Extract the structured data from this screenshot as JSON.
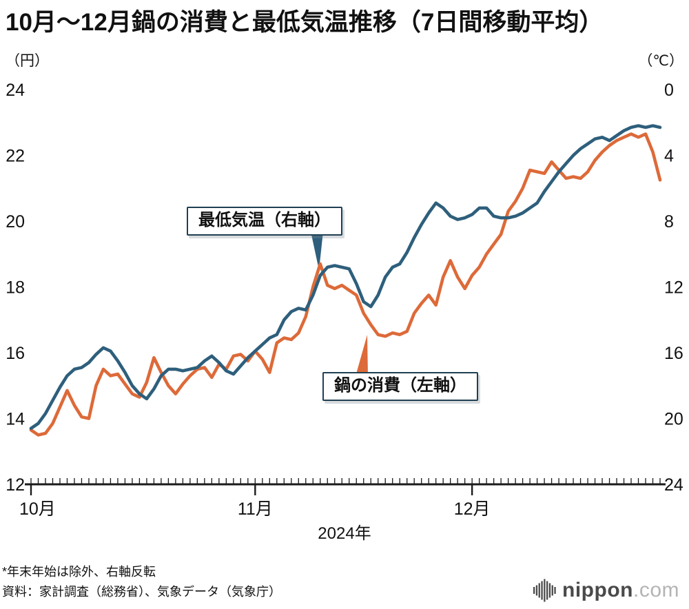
{
  "title": "10月〜12月鍋の消費と最低気温推移（7日間移動平均）",
  "left_axis": {
    "unit": "（円）",
    "ticks": [
      12,
      14,
      16,
      18,
      20,
      22,
      24
    ]
  },
  "right_axis": {
    "unit": "（℃）",
    "ticks": [
      0,
      4,
      8,
      12,
      16,
      20,
      24
    ],
    "reversed": true
  },
  "x_axis": {
    "months": [
      {
        "label": "10月",
        "day": 0
      },
      {
        "label": "11月",
        "day": 31
      },
      {
        "label": "12月",
        "day": 61
      }
    ],
    "year_label": "2024年"
  },
  "annotations": [
    {
      "text": "最低気温（右軸）",
      "series": "min_temperature"
    },
    {
      "text": "鍋の消費（左軸）",
      "series": "nabe_consumption"
    }
  ],
  "footnotes": [
    "*年末年始は除外、右軸反転",
    "資料：家計調査（総務省）、気象データ（気象庁）"
  ],
  "logo": {
    "name": "nippon",
    "tld": ".com"
  },
  "colors": {
    "temperature_line": "#2e5f7c",
    "nabe_line": "#dd6a39",
    "axis": "#1a1a1a"
  },
  "chart_data": {
    "type": "line",
    "title": "10月〜12月鍋の消費と最低気温推移（7日間移動平均）",
    "xlabel": "2024年（10月〜12月、年末年始は除外）",
    "left_ylabel": "鍋の消費（円）",
    "right_ylabel": "最低気温（℃、右軸反転）",
    "left_ylim": [
      12,
      24
    ],
    "right_ylim": [
      24,
      0
    ],
    "grid": false,
    "legend_position": "inline-annotations",
    "series": [
      {
        "name": "最低気温（右軸）",
        "axis": "right",
        "unit": "℃",
        "color": "#2e5f7c",
        "values": [
          20.6,
          20.3,
          19.7,
          18.9,
          18.1,
          17.4,
          17.0,
          16.9,
          16.6,
          16.1,
          15.7,
          15.9,
          16.5,
          17.2,
          18.0,
          18.5,
          18.8,
          18.2,
          17.4,
          17.0,
          17.0,
          17.1,
          17.0,
          16.9,
          16.5,
          16.2,
          16.6,
          17.1,
          17.3,
          16.8,
          16.3,
          15.9,
          15.5,
          15.1,
          14.9,
          14.0,
          13.5,
          13.3,
          13.4,
          12.5,
          11.3,
          10.8,
          10.7,
          10.8,
          10.9,
          11.8,
          12.9,
          13.2,
          12.5,
          11.4,
          10.8,
          10.6,
          9.9,
          9.0,
          8.2,
          7.5,
          6.9,
          7.2,
          7.7,
          7.9,
          7.8,
          7.6,
          7.2,
          7.2,
          7.7,
          7.8,
          7.8,
          7.7,
          7.5,
          7.2,
          6.9,
          6.2,
          5.6,
          5.0,
          4.5,
          4.0,
          3.6,
          3.3,
          3.0,
          2.9,
          3.1,
          2.8,
          2.5,
          2.3,
          2.2,
          2.3,
          2.2,
          2.3
        ]
      },
      {
        "name": "鍋の消費（左軸）",
        "axis": "left",
        "unit": "円",
        "color": "#dd6a39",
        "values": [
          13.65,
          13.5,
          13.55,
          13.85,
          14.35,
          14.85,
          14.4,
          14.05,
          14.0,
          15.0,
          15.5,
          15.3,
          15.35,
          15.05,
          14.75,
          14.65,
          15.1,
          15.85,
          15.4,
          15.0,
          14.75,
          15.05,
          15.3,
          15.5,
          15.55,
          15.25,
          15.65,
          15.5,
          15.9,
          15.95,
          15.75,
          16.05,
          15.8,
          15.4,
          16.3,
          16.45,
          16.4,
          16.6,
          17.1,
          18.0,
          18.7,
          18.05,
          17.95,
          18.05,
          17.9,
          17.75,
          17.2,
          16.85,
          16.55,
          16.5,
          16.6,
          16.55,
          16.65,
          17.2,
          17.5,
          17.75,
          17.45,
          18.3,
          18.8,
          18.3,
          17.95,
          18.35,
          18.6,
          19.0,
          19.3,
          19.6,
          20.3,
          20.6,
          21.0,
          21.55,
          21.5,
          21.45,
          21.8,
          21.55,
          21.3,
          21.35,
          21.3,
          21.5,
          21.85,
          22.1,
          22.3,
          22.45,
          22.55,
          22.65,
          22.55,
          22.65,
          22.1,
          21.25
        ]
      }
    ]
  }
}
